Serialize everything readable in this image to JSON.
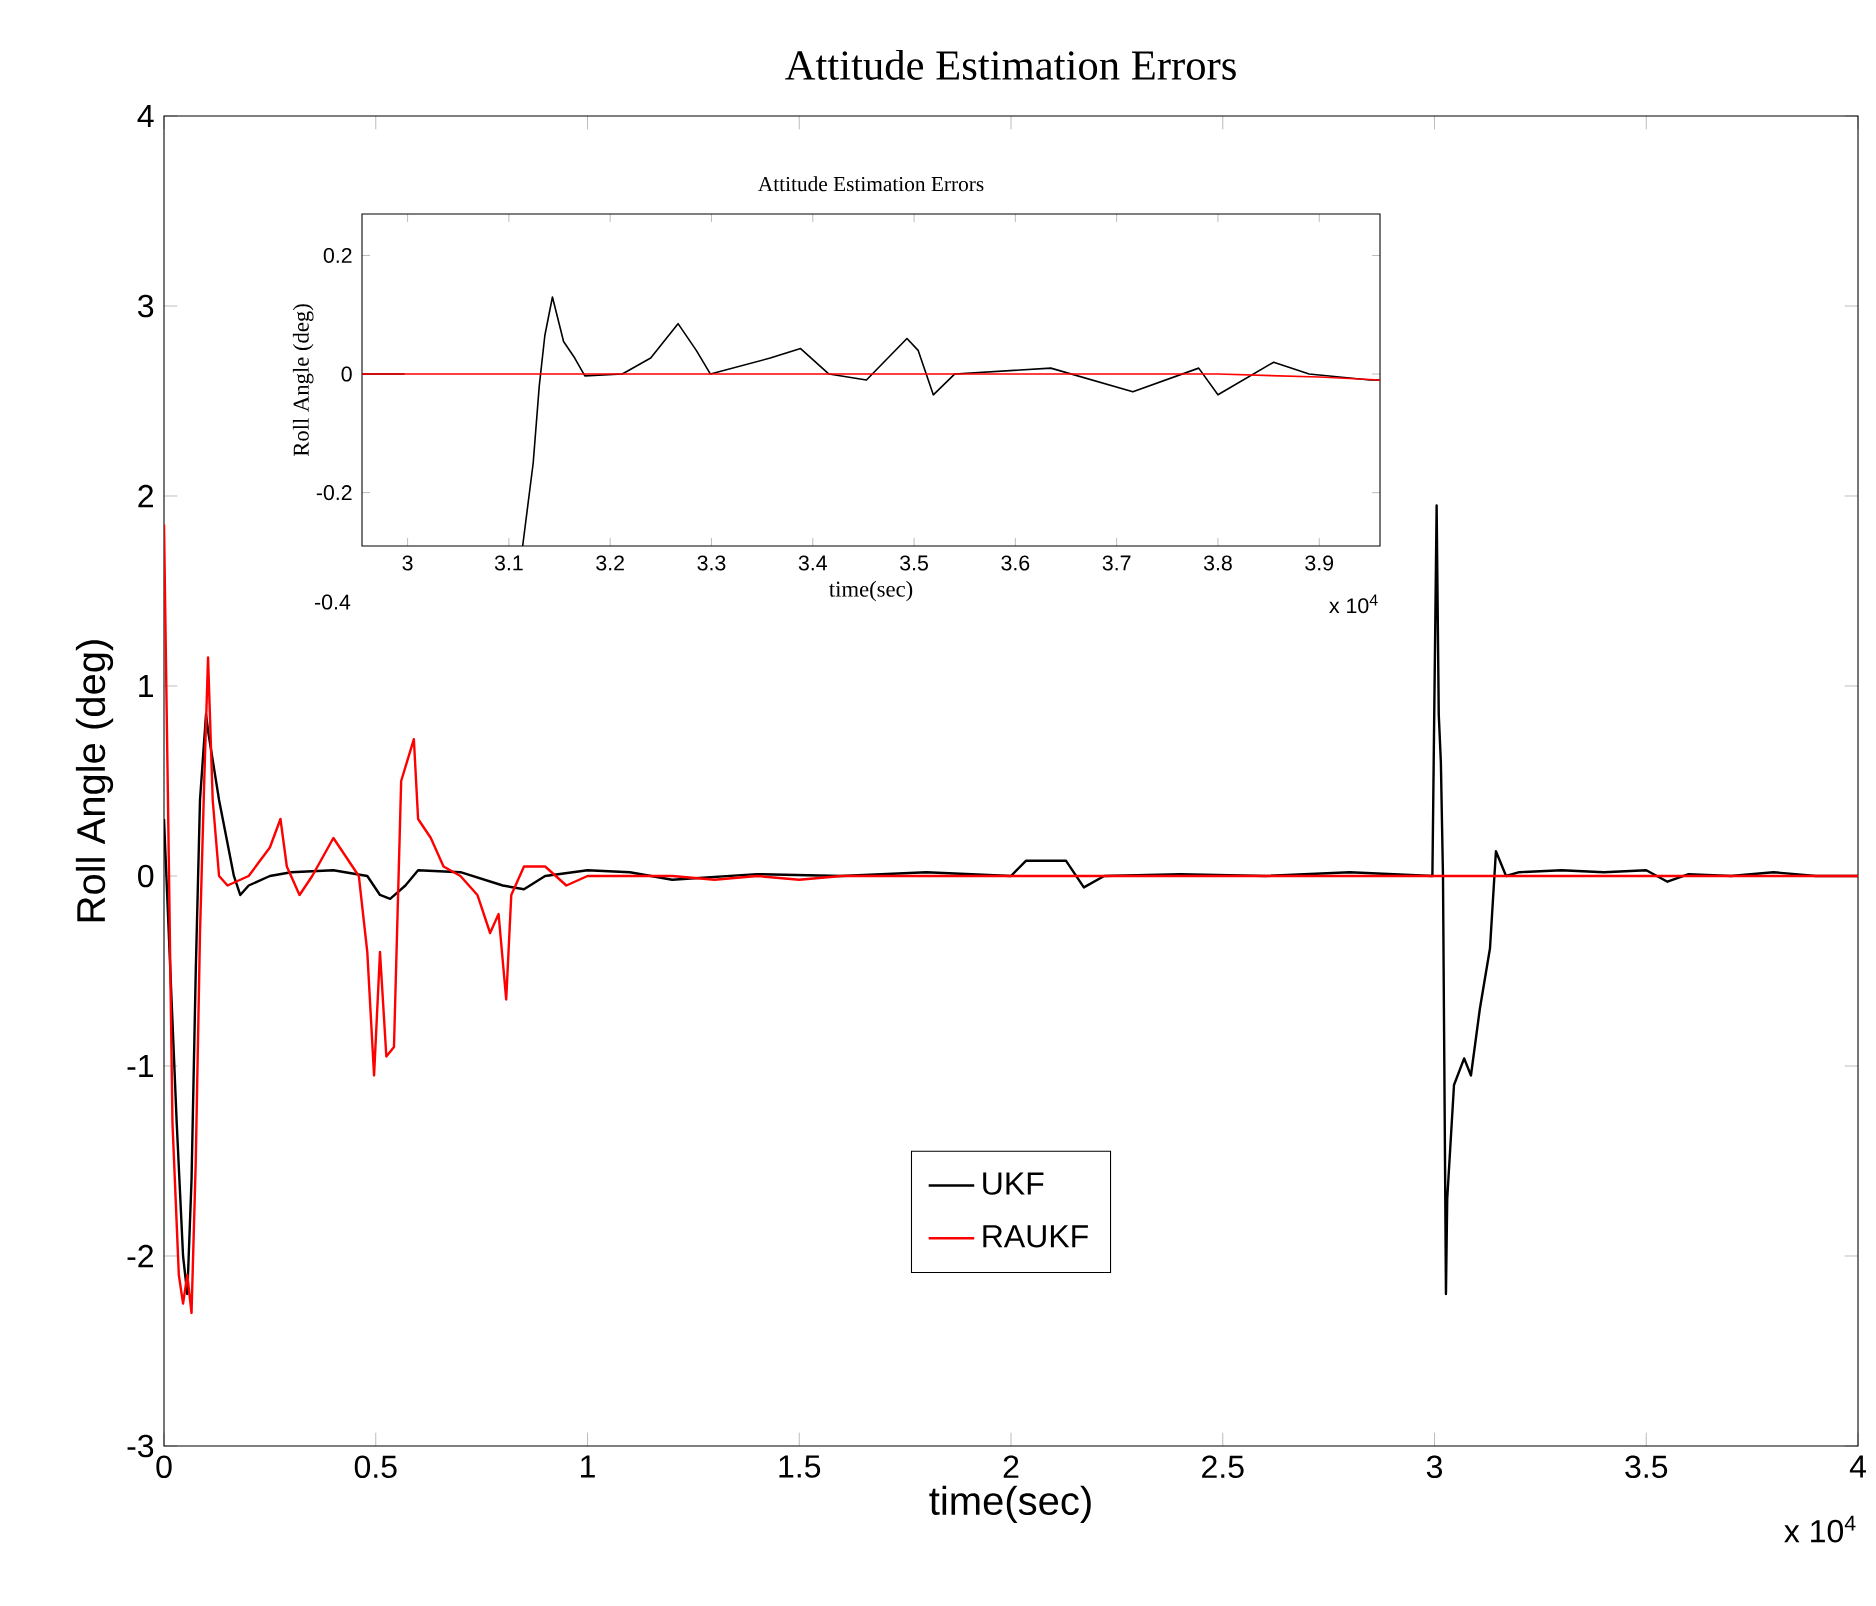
{
  "chart_data": [
    {
      "type": "line",
      "title": "Attitude Estimation Errors",
      "xlabel": "time(sec)",
      "ylabel": "Roll Angle (deg)",
      "xlim": [
        0,
        4
      ],
      "ylim": [
        -3,
        4
      ],
      "xticks": [
        0,
        0.5,
        1,
        1.5,
        2,
        2.5,
        3,
        3.5,
        4
      ],
      "yticks": [
        -3,
        -2,
        -1,
        0,
        1,
        2,
        3,
        4
      ],
      "legend": "bottom",
      "annotations": [
        "x 10$^{4}$"
      ],
      "series": [
        {
          "name": "UKF",
          "color": "#000000",
          "x": [
            0,
            0.015,
            0.03,
            0.045,
            0.055,
            0.065,
            0.075,
            0.085,
            0.0992,
            0.105,
            0.13,
            0.165,
            0.18,
            0.2,
            0.25,
            0.3,
            0.4,
            0.48,
            0.51,
            0.534,
            0.57,
            0.6,
            0.7,
            0.8,
            0.85,
            0.9,
            1.0,
            1.1,
            1.2,
            1.4,
            1.6,
            1.8,
            2.0,
            2.035,
            2.13,
            2.172,
            2.22,
            2.4,
            2.6,
            2.8,
            2.995,
            3.005,
            3.01,
            3.015,
            3.02,
            3.027,
            3.03,
            3.046,
            3.07,
            3.086,
            3.107,
            3.131,
            3.145,
            3.169,
            3.2,
            3.3,
            3.4,
            3.5,
            3.55,
            3.6,
            3.7,
            3.8,
            3.9,
            4.0
          ],
          "values": [
            0.3,
            -0.5,
            -1.3,
            -2.0,
            -2.2,
            -1.6,
            -0.5,
            0.4,
            0.85,
            0.75,
            0.4,
            0.0,
            -0.1,
            -0.05,
            0.0,
            0.02,
            0.03,
            0.0,
            -0.1,
            -0.12,
            -0.05,
            0.03,
            0.02,
            -0.05,
            -0.07,
            0.0,
            0.03,
            0.02,
            -0.02,
            0.01,
            0.0,
            0.02,
            0.0,
            0.08,
            0.08,
            -0.06,
            0.0,
            0.01,
            0.0,
            0.02,
            0.0,
            1.95,
            0.85,
            0.6,
            0.0,
            -2.2,
            -1.7,
            -1.1,
            -0.96,
            -1.05,
            -0.7,
            -0.38,
            0.13,
            0.0,
            0.02,
            0.03,
            0.02,
            0.03,
            -0.03,
            0.01,
            0.0,
            0.02,
            0.0,
            0.0
          ]
        },
        {
          "name": "RAUKF",
          "color": "#ff0000",
          "x": [
            0,
            0.01,
            0.02,
            0.035,
            0.045,
            0.055,
            0.065,
            0.075,
            0.085,
            0.095,
            0.104,
            0.115,
            0.13,
            0.15,
            0.2,
            0.25,
            0.275,
            0.29,
            0.32,
            0.35,
            0.4,
            0.43,
            0.46,
            0.48,
            0.496,
            0.51,
            0.525,
            0.543,
            0.56,
            0.59,
            0.6,
            0.63,
            0.66,
            0.7,
            0.74,
            0.77,
            0.79,
            0.808,
            0.82,
            0.85,
            0.9,
            0.95,
            1.0,
            1.2,
            1.3,
            1.4,
            1.5,
            1.6,
            4.0
          ],
          "values": [
            1.85,
            0.3,
            -1.3,
            -2.1,
            -2.25,
            -2.1,
            -2.3,
            -1.5,
            -0.3,
            0.5,
            1.15,
            0.4,
            0.0,
            -0.05,
            0.0,
            0.15,
            0.3,
            0.05,
            -0.1,
            0.0,
            0.2,
            0.1,
            0.0,
            -0.4,
            -1.05,
            -0.4,
            -0.95,
            -0.9,
            0.5,
            0.72,
            0.3,
            0.2,
            0.05,
            0.0,
            -0.1,
            -0.3,
            -0.2,
            -0.65,
            -0.1,
            0.05,
            0.05,
            -0.05,
            0.0,
            0.0,
            -0.02,
            0.0,
            -0.02,
            0.0,
            0.0
          ]
        }
      ]
    },
    {
      "type": "line",
      "title": "Attitude Estimation Errors",
      "xlabel": "time(sec)",
      "ylabel": "Roll Angle (deg)",
      "xlim": [
        2.955,
        3.96
      ],
      "ylim": [
        -0.29,
        0.27
      ],
      "xticks": [
        3,
        3.1,
        3.2,
        3.3,
        3.4,
        3.5,
        3.6,
        3.7,
        3.8,
        3.9
      ],
      "yticks": [
        -0.2,
        0,
        0.2
      ],
      "annotations": [
        "x 10$^{4}$",
        "-0.4"
      ],
      "series": [
        {
          "color": "#000000",
          "x": [
            2.955,
            2.997,
            3.0,
            3.1136,
            3.124,
            3.13,
            3.1355,
            3.143,
            3.154,
            3.165,
            3.175,
            3.212,
            3.24,
            3.267,
            3.285,
            3.299,
            3.358,
            3.388,
            3.416,
            3.453,
            3.493,
            3.504,
            3.519,
            3.54,
            3.635,
            3.716,
            3.781,
            3.8,
            3.855,
            3.89,
            3.95,
            3.96
          ],
          "values": [
            0.0,
            0.0,
            null,
            -0.29,
            -0.15,
            -0.02,
            0.065,
            0.13,
            0.055,
            0.027,
            -0.003,
            0.0,
            0.027,
            0.085,
            0.04,
            0.0,
            0.027,
            0.043,
            0.0,
            -0.01,
            0.06,
            0.04,
            -0.035,
            0.0,
            0.01,
            -0.03,
            0.01,
            -0.035,
            0.02,
            0.0,
            -0.01,
            -0.01
          ]
        },
        {
          "color": "#ff0000",
          "x": [
            2.955,
            3.1,
            3.3,
            3.5,
            3.7,
            3.8,
            3.9,
            3.96
          ],
          "values": [
            0.0,
            0.0,
            0.0,
            0.0,
            0.0,
            0.0,
            -0.005,
            -0.01
          ]
        }
      ]
    }
  ]
}
